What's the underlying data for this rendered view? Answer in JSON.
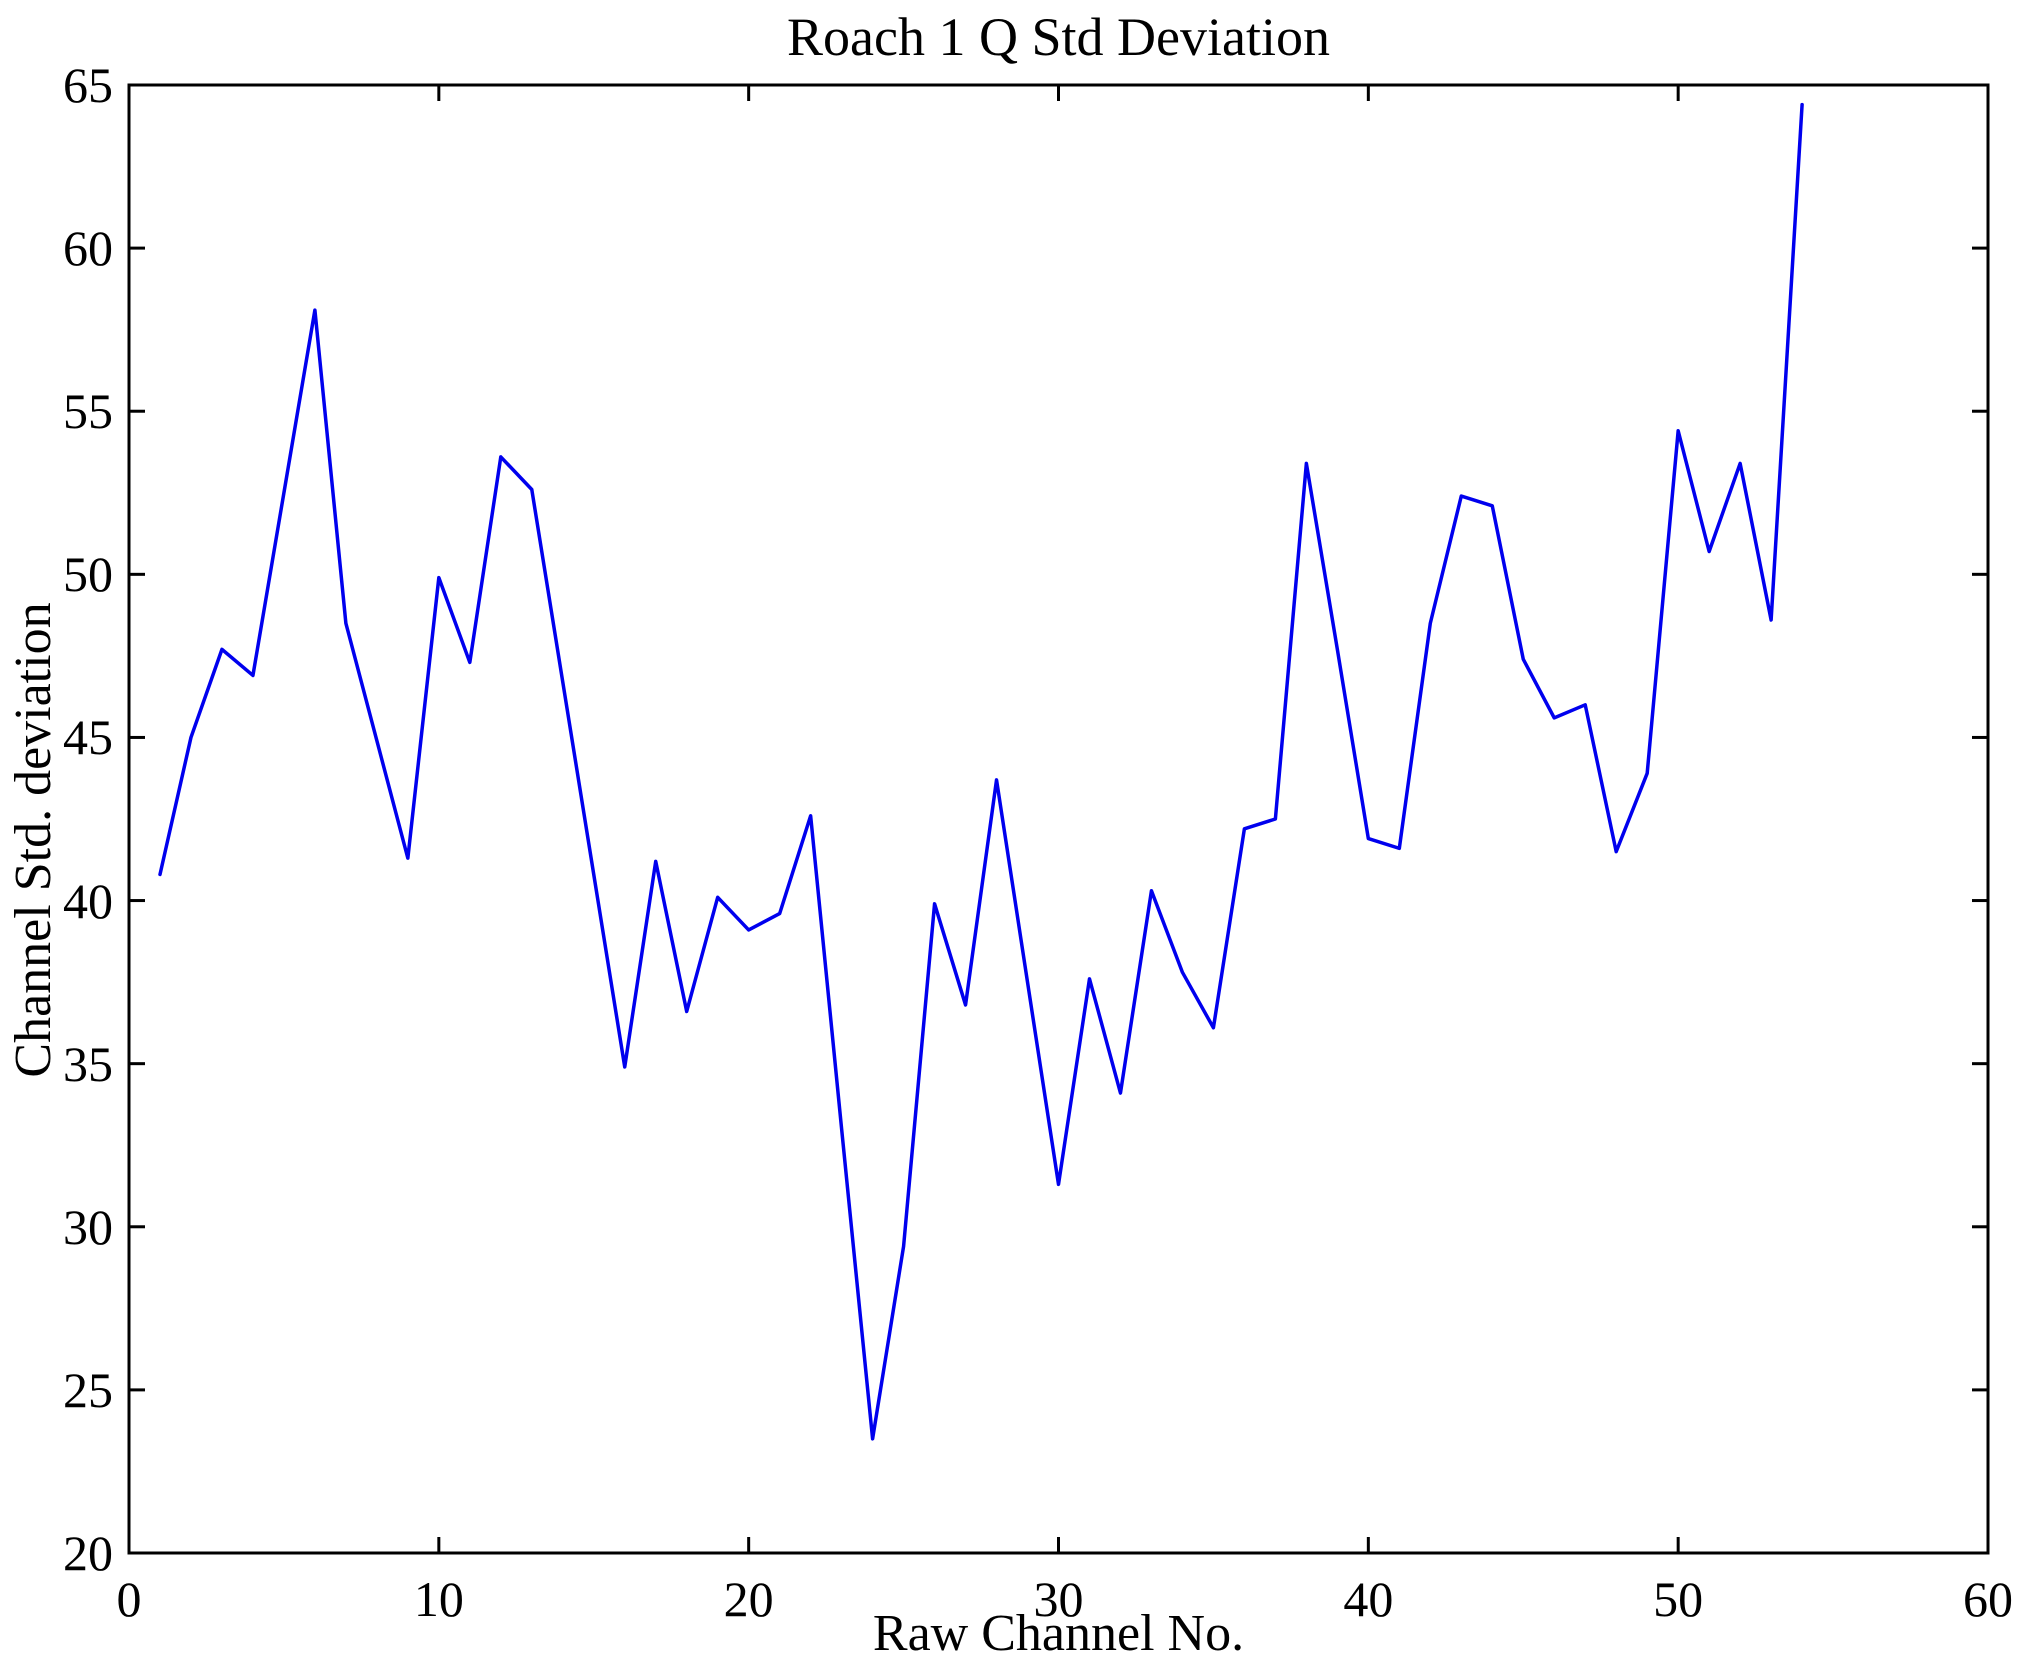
{
  "figure": {
    "background": "#ffffff",
    "axis_color": "#000000",
    "text_color": "#000000"
  },
  "chart_data": {
    "type": "line",
    "title": "Roach 1 Q Std Deviation",
    "xlabel": "Raw Channel No.",
    "ylabel": "Channel Std. deviation",
    "x": [
      1,
      2,
      3,
      4,
      5,
      6,
      7,
      8,
      9,
      10,
      11,
      12,
      13,
      14,
      15,
      16,
      17,
      18,
      19,
      20,
      21,
      22,
      23,
      24,
      25,
      26,
      27,
      28,
      29,
      30,
      31,
      32,
      33,
      34,
      35,
      36,
      37,
      38,
      39,
      40,
      41,
      42,
      43,
      44,
      45,
      46,
      47,
      48,
      49,
      50,
      51,
      52,
      53,
      54
    ],
    "y": [
      40.8,
      45.0,
      47.7,
      46.9,
      52.5,
      58.1,
      48.5,
      44.9,
      41.3,
      49.9,
      47.3,
      53.6,
      52.6,
      46.7,
      40.8,
      34.9,
      41.2,
      36.6,
      40.1,
      39.1,
      39.6,
      42.6,
      33.0,
      23.5,
      29.4,
      39.9,
      36.8,
      43.7,
      37.5,
      31.3,
      37.6,
      34.1,
      40.3,
      37.8,
      36.1,
      42.2,
      42.5,
      53.4,
      47.7,
      41.9,
      41.6,
      48.5,
      52.4,
      52.1,
      47.4,
      45.6,
      46.0,
      41.5,
      43.9,
      54.4,
      50.7,
      53.4,
      48.6,
      64.4
    ],
    "xlim": [
      0,
      60
    ],
    "ylim": [
      20,
      65
    ],
    "xticks": [
      0,
      10,
      20,
      30,
      40,
      50,
      60
    ],
    "yticks": [
      20,
      25,
      30,
      35,
      40,
      45,
      50,
      55,
      60,
      65
    ],
    "grid": false,
    "legend": null,
    "line_color": "#0000ee",
    "series_name": "channel-std-deviation"
  }
}
